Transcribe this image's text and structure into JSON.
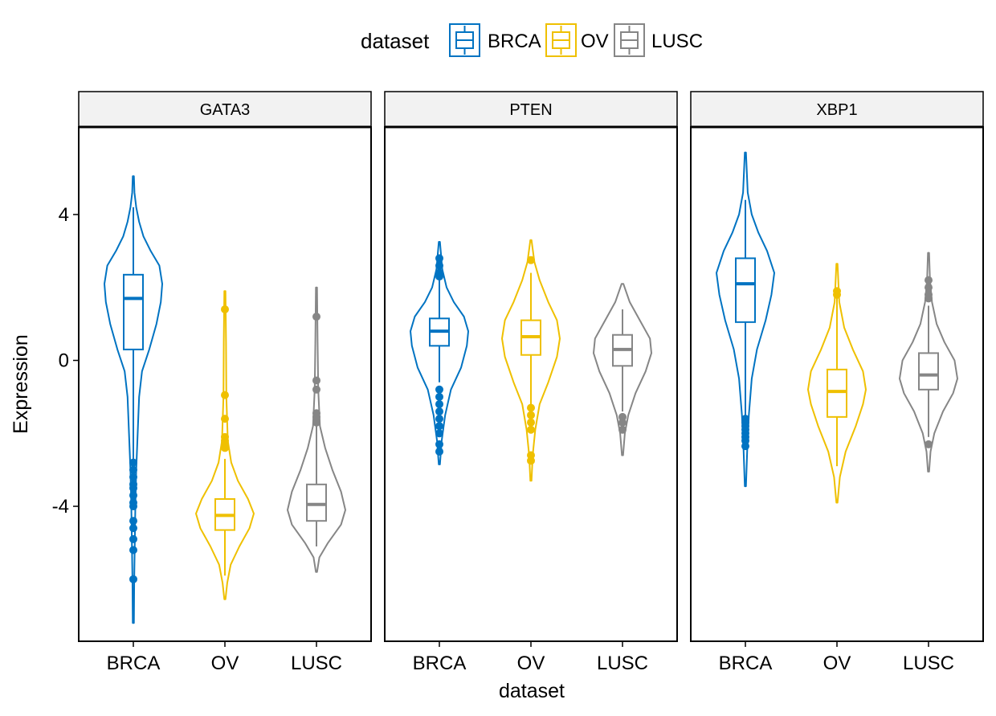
{
  "chart_data": {
    "type": "violin",
    "xlabel": "dataset",
    "ylabel": "Expression",
    "ylim": [
      -7.7,
      6.4
    ],
    "yticks": [
      -4,
      0,
      4
    ],
    "ytick_labels": [
      "-4",
      "0",
      "4"
    ],
    "categories": [
      "BRCA",
      "OV",
      "LUSC"
    ],
    "legend": {
      "title": "dataset",
      "position": "top",
      "entries": [
        "BRCA",
        "OV",
        "LUSC"
      ]
    },
    "colors": {
      "BRCA": "#0073C2",
      "OV": "#EFC000",
      "LUSC": "#868686"
    },
    "grid": false,
    "panels": [
      {
        "title": "GATA3",
        "groups": [
          {
            "dataset": "BRCA",
            "violin_min": -7.2,
            "violin_max": 5.05,
            "box": {
              "q1": 0.3,
              "median": 1.7,
              "q3": 2.35
            },
            "whisker_low": -2.7,
            "whisker_high": 4.2,
            "outliers": [
              -2.8,
              -3.0,
              -3.2,
              -3.4,
              -3.5,
              -3.7,
              -3.9,
              -4.0,
              -4.4,
              -4.6,
              -4.9,
              -5.2,
              -6.0
            ],
            "density": [
              [
                -7.2,
                0.02
              ],
              [
                -6.0,
                0.03
              ],
              [
                -5.0,
                0.05
              ],
              [
                -4.0,
                0.07
              ],
              [
                -3.0,
                0.1
              ],
              [
                -2.0,
                0.15
              ],
              [
                -1.0,
                0.2
              ],
              [
                -0.3,
                0.3
              ],
              [
                0.3,
                0.55
              ],
              [
                1.0,
                0.8
              ],
              [
                1.6,
                0.95
              ],
              [
                2.1,
                1.0
              ],
              [
                2.6,
                0.9
              ],
              [
                3.0,
                0.6
              ],
              [
                3.4,
                0.35
              ],
              [
                3.8,
                0.2
              ],
              [
                4.2,
                0.1
              ],
              [
                4.6,
                0.04
              ],
              [
                5.05,
                0.02
              ]
            ]
          },
          {
            "dataset": "OV",
            "violin_min": -6.55,
            "violin_max": 1.9,
            "box": {
              "q1": -4.65,
              "median": -4.25,
              "q3": -3.8
            },
            "whisker_low": -5.9,
            "whisker_high": -2.7,
            "outliers": [
              1.4,
              -0.95,
              -1.6,
              -2.1,
              -2.2,
              -2.3,
              -2.4
            ],
            "density": [
              [
                -6.55,
                0.02
              ],
              [
                -6.1,
                0.08
              ],
              [
                -5.6,
                0.2
              ],
              [
                -5.1,
                0.5
              ],
              [
                -4.6,
                0.85
              ],
              [
                -4.2,
                1.0
              ],
              [
                -3.8,
                0.8
              ],
              [
                -3.3,
                0.45
              ],
              [
                -2.8,
                0.22
              ],
              [
                -2.2,
                0.1
              ],
              [
                -1.0,
                0.05
              ],
              [
                0.5,
                0.04
              ],
              [
                1.9,
                0.02
              ]
            ]
          },
          {
            "dataset": "LUSC",
            "violin_min": -5.8,
            "violin_max": 2.0,
            "box": {
              "q1": -4.4,
              "median": -3.95,
              "q3": -3.4
            },
            "whisker_low": -5.1,
            "whisker_high": -1.8,
            "outliers": [
              1.2,
              -0.55,
              -0.8,
              -1.45,
              -1.55,
              -1.7
            ],
            "density": [
              [
                -5.8,
                0.02
              ],
              [
                -5.4,
                0.1
              ],
              [
                -5.0,
                0.4
              ],
              [
                -4.5,
                0.85
              ],
              [
                -4.1,
                1.0
              ],
              [
                -3.6,
                0.85
              ],
              [
                -3.0,
                0.55
              ],
              [
                -2.4,
                0.3
              ],
              [
                -1.8,
                0.12
              ],
              [
                -0.8,
                0.06
              ],
              [
                0.5,
                0.04
              ],
              [
                2.0,
                0.02
              ]
            ]
          }
        ]
      },
      {
        "title": "PTEN",
        "groups": [
          {
            "dataset": "BRCA",
            "violin_min": -2.85,
            "violin_max": 3.25,
            "box": {
              "q1": 0.4,
              "median": 0.8,
              "q3": 1.15
            },
            "whisker_low": -0.6,
            "whisker_high": 2.2,
            "outliers": [
              2.8,
              2.6,
              2.4,
              2.3,
              -0.8,
              -1.0,
              -1.2,
              -1.4,
              -1.6,
              -1.8,
              -2.0,
              -2.3,
              -2.5
            ],
            "density": [
              [
                -2.85,
                0.02
              ],
              [
                -2.2,
                0.08
              ],
              [
                -1.5,
                0.2
              ],
              [
                -0.8,
                0.4
              ],
              [
                -0.2,
                0.75
              ],
              [
                0.4,
                0.95
              ],
              [
                0.8,
                1.0
              ],
              [
                1.2,
                0.85
              ],
              [
                1.6,
                0.5
              ],
              [
                2.0,
                0.25
              ],
              [
                2.5,
                0.1
              ],
              [
                3.25,
                0.02
              ]
            ]
          },
          {
            "dataset": "OV",
            "violin_min": -3.3,
            "violin_max": 3.3,
            "box": {
              "q1": 0.15,
              "median": 0.65,
              "q3": 1.1
            },
            "whisker_low": -1.2,
            "whisker_high": 2.4,
            "outliers": [
              2.75,
              -1.3,
              -1.5,
              -1.7,
              -1.9,
              -2.6,
              -2.75
            ],
            "density": [
              [
                -3.3,
                0.02
              ],
              [
                -2.6,
                0.06
              ],
              [
                -1.9,
                0.15
              ],
              [
                -1.2,
                0.3
              ],
              [
                -0.6,
                0.6
              ],
              [
                0.1,
                0.9
              ],
              [
                0.6,
                1.0
              ],
              [
                1.1,
                0.9
              ],
              [
                1.6,
                0.6
              ],
              [
                2.2,
                0.3
              ],
              [
                2.7,
                0.12
              ],
              [
                3.3,
                0.02
              ]
            ]
          },
          {
            "dataset": "LUSC",
            "violin_min": -2.6,
            "violin_max": 2.1,
            "box": {
              "q1": -0.15,
              "median": 0.3,
              "q3": 0.7
            },
            "whisker_low": -1.4,
            "whisker_high": 1.4,
            "outliers": [
              -1.55,
              -1.7,
              -1.9
            ],
            "density": [
              [
                -2.6,
                0.02
              ],
              [
                -2.0,
                0.08
              ],
              [
                -1.5,
                0.2
              ],
              [
                -0.9,
                0.45
              ],
              [
                -0.3,
                0.8
              ],
              [
                0.2,
                1.0
              ],
              [
                0.6,
                0.95
              ],
              [
                1.1,
                0.6
              ],
              [
                1.6,
                0.25
              ],
              [
                2.1,
                0.03
              ]
            ]
          }
        ]
      },
      {
        "title": "XBP1",
        "groups": [
          {
            "dataset": "BRCA",
            "violin_min": -3.45,
            "violin_max": 5.7,
            "box": {
              "q1": 1.05,
              "median": 2.1,
              "q3": 2.8
            },
            "whisker_low": -1.5,
            "whisker_high": 4.4,
            "outliers": [
              -1.6,
              -1.7,
              -1.8,
              -1.9,
              -2.0,
              -2.1,
              -2.2,
              -2.35
            ],
            "density": [
              [
                -3.45,
                0.02
              ],
              [
                -2.5,
                0.06
              ],
              [
                -1.5,
                0.12
              ],
              [
                -0.5,
                0.22
              ],
              [
                0.3,
                0.4
              ],
              [
                1.1,
                0.7
              ],
              [
                1.8,
                0.9
              ],
              [
                2.4,
                1.0
              ],
              [
                3.0,
                0.75
              ],
              [
                3.5,
                0.45
              ],
              [
                4.0,
                0.22
              ],
              [
                4.6,
                0.08
              ],
              [
                5.7,
                0.02
              ]
            ]
          },
          {
            "dataset": "OV",
            "violin_min": -3.9,
            "violin_max": 2.65,
            "box": {
              "q1": -1.55,
              "median": -0.85,
              "q3": -0.25
            },
            "whisker_low": -2.9,
            "whisker_high": 1.7,
            "outliers": [
              1.8,
              1.9
            ],
            "density": [
              [
                -3.9,
                0.02
              ],
              [
                -3.2,
                0.1
              ],
              [
                -2.5,
                0.3
              ],
              [
                -1.8,
                0.65
              ],
              [
                -1.2,
                0.9
              ],
              [
                -0.8,
                1.0
              ],
              [
                -0.3,
                0.9
              ],
              [
                0.3,
                0.55
              ],
              [
                0.9,
                0.25
              ],
              [
                1.6,
                0.08
              ],
              [
                2.65,
                0.02
              ]
            ]
          },
          {
            "dataset": "LUSC",
            "violin_min": -3.05,
            "violin_max": 2.95,
            "box": {
              "q1": -0.8,
              "median": -0.4,
              "q3": 0.2
            },
            "whisker_low": -2.1,
            "whisker_high": 1.5,
            "outliers": [
              1.7,
              1.8,
              2.0,
              2.2,
              -2.3
            ],
            "density": [
              [
                -3.05,
                0.02
              ],
              [
                -2.5,
                0.07
              ],
              [
                -2.0,
                0.2
              ],
              [
                -1.4,
                0.5
              ],
              [
                -0.9,
                0.85
              ],
              [
                -0.5,
                1.0
              ],
              [
                0.0,
                0.9
              ],
              [
                0.5,
                0.55
              ],
              [
                1.0,
                0.28
              ],
              [
                1.6,
                0.12
              ],
              [
                2.2,
                0.05
              ],
              [
                2.95,
                0.02
              ]
            ]
          }
        ]
      }
    ]
  }
}
